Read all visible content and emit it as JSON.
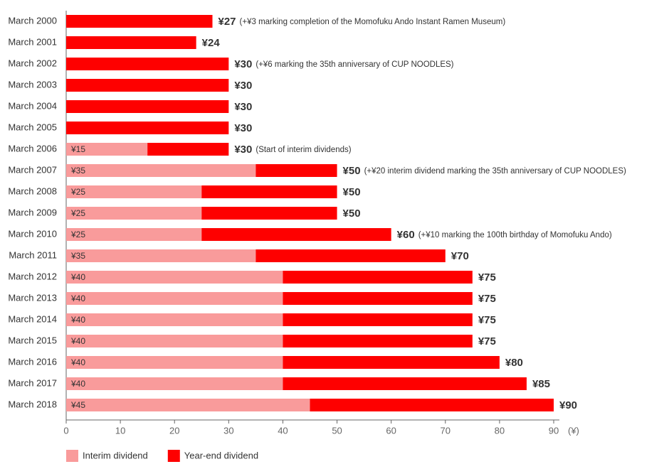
{
  "chart_data": {
    "type": "stacked-barh",
    "categories": [
      "March 2000",
      "March 2001",
      "March 2002",
      "March 2003",
      "March 2004",
      "March 2005",
      "March 2006",
      "March 2007",
      "March 2008",
      "March 2009",
      "March 2010",
      "March 2011",
      "March 2012",
      "March 2013",
      "March 2014",
      "March 2015",
      "March 2016",
      "March 2017",
      "March 2018"
    ],
    "series": [
      {
        "name": "Interim dividend",
        "color": "#f99b9b",
        "values": [
          null,
          null,
          null,
          null,
          null,
          null,
          15,
          35,
          25,
          25,
          25,
          35,
          40,
          40,
          40,
          40,
          40,
          40,
          45
        ],
        "value_labels": [
          null,
          null,
          null,
          null,
          null,
          null,
          "¥15",
          "¥35",
          "¥25",
          "¥25",
          "¥25",
          "¥35",
          "¥40",
          "¥40",
          "¥40",
          "¥40",
          "¥40",
          "¥40",
          "¥45"
        ]
      },
      {
        "name": "Year-end dividend",
        "color": "#fe0000",
        "values": [
          27,
          24,
          30,
          30,
          30,
          30,
          15,
          15,
          25,
          25,
          35,
          35,
          35,
          35,
          35,
          35,
          40,
          45,
          45
        ]
      }
    ],
    "totals": [
      27,
      24,
      30,
      30,
      30,
      30,
      30,
      50,
      50,
      50,
      60,
      70,
      75,
      75,
      75,
      75,
      80,
      85,
      90
    ],
    "total_labels": [
      "¥27",
      "¥24",
      "¥30",
      "¥30",
      "¥30",
      "¥30",
      "¥30",
      "¥50",
      "¥50",
      "¥50",
      "¥60",
      "¥70",
      "¥75",
      "¥75",
      "¥75",
      "¥75",
      "¥80",
      "¥85",
      "¥90"
    ],
    "annotations": [
      "(+¥3 marking completion of the Momofuku Ando Instant Ramen Museum)",
      null,
      "(+¥6 marking the 35th anniversary of CUP NOODLES)",
      null,
      null,
      null,
      "(Start of interim dividends)",
      "(+¥20 interim dividend marking the 35th anniversary of CUP NOODLES)",
      null,
      null,
      "(+¥10 marking the 100th birthday of Momofuku Ando)",
      null,
      null,
      null,
      null,
      null,
      null,
      null,
      null
    ],
    "xlim": [
      0,
      90
    ],
    "xticks": [
      0,
      10,
      20,
      30,
      40,
      50,
      60,
      70,
      80,
      90
    ],
    "x_unit": "(¥)",
    "legend": "bottom-left"
  }
}
